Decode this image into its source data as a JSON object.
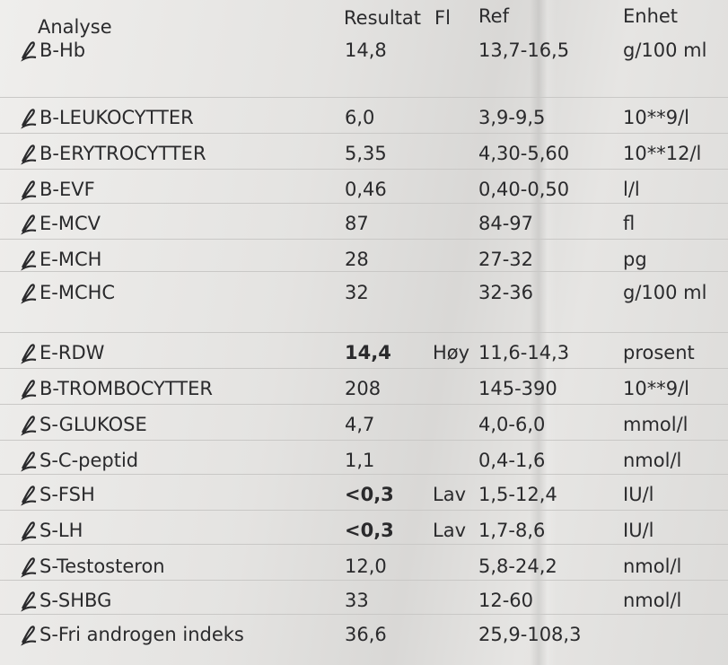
{
  "header": {
    "analyse": "Analyse",
    "result": "Resultat",
    "flag": "Fl",
    "ref": "Ref",
    "unit": "Enhet"
  },
  "rows": [
    {
      "analyse": "B-Hb",
      "result": "14,8",
      "ref": "13,7-16,5",
      "unit": "g/100 ml"
    },
    {
      "analyse": "B-LEUKOCYTTER",
      "result": "6,0",
      "ref": "3,9-9,5",
      "unit": "10**9/l"
    },
    {
      "analyse": "B-ERYTROCYTTER",
      "result": "5,35",
      "ref": "4,30-5,60",
      "unit": "10**12/l"
    },
    {
      "analyse": "B-EVF",
      "result": "0,46",
      "ref": "0,40-0,50",
      "unit": "l/l"
    },
    {
      "analyse": "E-MCV",
      "result": "87",
      "ref": "84-97",
      "unit": "fl"
    },
    {
      "analyse": "E-MCH",
      "result": "28",
      "ref": "27-32",
      "unit": "pg"
    },
    {
      "analyse": "E-MCHC",
      "result": "32",
      "ref": "32-36",
      "unit": "g/100 ml"
    },
    {
      "analyse": "E-RDW",
      "result": "14,4",
      "flag": "Høy",
      "ref": "11,6-14,3",
      "unit": "prosent",
      "bold": true
    },
    {
      "analyse": "B-TROMBOCYTTER",
      "result": "208",
      "ref": "145-390",
      "unit": "10**9/l"
    },
    {
      "analyse": "S-GLUKOSE",
      "result": "4,7",
      "ref": "4,0-6,0",
      "unit": "mmol/l"
    },
    {
      "analyse": "S-C-peptid",
      "result": "1,1",
      "ref": "0,4-1,6",
      "unit": "nmol/l"
    },
    {
      "analyse": "S-FSH",
      "result": "<0,3",
      "flag": "Lav",
      "ref": "1,5-12,4",
      "unit": "IU/l",
      "bold": true
    },
    {
      "analyse": "S-LH",
      "result": "<0,3",
      "flag": "Lav",
      "ref": "1,7-8,6",
      "unit": "IU/l",
      "bold": true
    },
    {
      "analyse": "S-Testosteron",
      "result": "12,0",
      "ref": "5,8-24,2",
      "unit": "nmol/l"
    },
    {
      "analyse": "S-SHBG",
      "result": "33",
      "ref": "12-60",
      "unit": "nmol/l"
    },
    {
      "analyse": "S-Fri androgen indeks",
      "result": "36,6",
      "ref": "25,9-108,3"
    }
  ]
}
